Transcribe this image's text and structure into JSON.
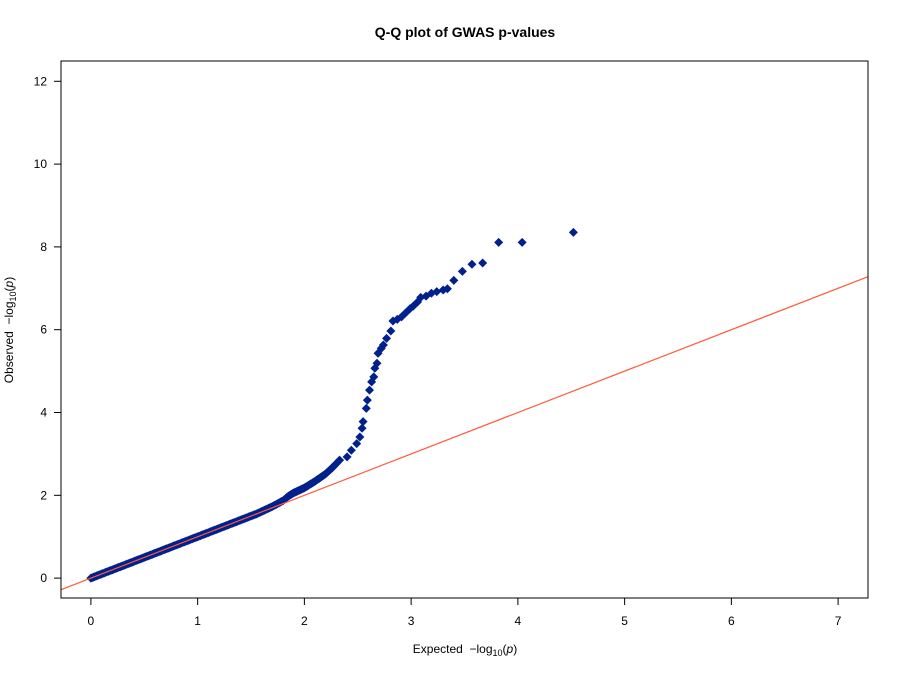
{
  "chart_data": {
    "type": "scatter",
    "title": "Q-Q plot of GWAS p-values",
    "xlabel": "Expected  −log10(p)",
    "ylabel": "Observed  −log10(p)",
    "xlim": [
      -0.28,
      7.28
    ],
    "ylim": [
      -0.48,
      12.49
    ],
    "xticks": [
      0,
      1,
      2,
      3,
      4,
      5,
      6,
      7
    ],
    "yticks": [
      0,
      2,
      4,
      6,
      8,
      10,
      12
    ],
    "grid": false,
    "marker": "diamond",
    "point_color": "#00208C",
    "reference_line": {
      "slope": 1,
      "intercept": 0,
      "color": "#FF5A3C"
    },
    "points": [
      [
        0,
        0
      ],
      [
        0.05,
        0.05
      ],
      [
        0.1,
        0.1
      ],
      [
        0.15,
        0.15
      ],
      [
        0.2,
        0.2
      ],
      [
        0.25,
        0.25
      ],
      [
        0.3,
        0.3
      ],
      [
        0.35,
        0.35
      ],
      [
        0.4,
        0.4
      ],
      [
        0.45,
        0.45
      ],
      [
        0.5,
        0.5
      ],
      [
        0.55,
        0.55
      ],
      [
        0.6,
        0.6
      ],
      [
        0.65,
        0.65
      ],
      [
        0.7,
        0.7
      ],
      [
        0.75,
        0.75
      ],
      [
        0.8,
        0.8
      ],
      [
        0.85,
        0.85
      ],
      [
        0.9,
        0.9
      ],
      [
        0.95,
        0.95
      ],
      [
        1.0,
        1.0
      ],
      [
        1.05,
        1.05
      ],
      [
        1.1,
        1.1
      ],
      [
        1.15,
        1.15
      ],
      [
        1.2,
        1.2
      ],
      [
        1.25,
        1.25
      ],
      [
        1.3,
        1.3
      ],
      [
        1.35,
        1.35
      ],
      [
        1.4,
        1.4
      ],
      [
        1.45,
        1.45
      ],
      [
        1.5,
        1.5
      ],
      [
        1.55,
        1.55
      ],
      [
        1.6,
        1.61
      ],
      [
        1.65,
        1.67
      ],
      [
        1.7,
        1.73
      ],
      [
        1.75,
        1.8
      ],
      [
        1.8,
        1.87
      ],
      [
        1.85,
        1.98
      ],
      [
        1.9,
        2.06
      ],
      [
        1.95,
        2.12
      ],
      [
        2.0,
        2.18
      ],
      [
        2.05,
        2.26
      ],
      [
        2.1,
        2.34
      ],
      [
        2.15,
        2.43
      ],
      [
        2.2,
        2.52
      ],
      [
        2.25,
        2.64
      ],
      [
        2.27,
        2.69
      ],
      [
        2.33,
        2.85
      ],
      [
        2.4,
        2.93
      ],
      [
        2.44,
        3.09
      ],
      [
        2.49,
        3.25
      ],
      [
        2.52,
        3.41
      ],
      [
        2.54,
        3.62
      ],
      [
        2.55,
        3.78
      ],
      [
        2.58,
        4.1
      ],
      [
        2.59,
        4.3
      ],
      [
        2.61,
        4.54
      ],
      [
        2.63,
        4.74
      ],
      [
        2.65,
        4.86
      ],
      [
        2.66,
        5.07
      ],
      [
        2.68,
        5.19
      ],
      [
        2.69,
        5.43
      ],
      [
        2.72,
        5.55
      ],
      [
        2.74,
        5.63
      ],
      [
        2.77,
        5.79
      ],
      [
        2.81,
        5.97
      ],
      [
        2.83,
        6.21
      ],
      [
        2.87,
        6.25
      ],
      [
        2.91,
        6.31
      ],
      [
        2.95,
        6.41
      ],
      [
        2.99,
        6.51
      ],
      [
        3.02,
        6.57
      ],
      [
        3.06,
        6.67
      ],
      [
        3.09,
        6.78
      ],
      [
        3.14,
        6.81
      ],
      [
        3.19,
        6.88
      ],
      [
        3.24,
        6.92
      ],
      [
        3.3,
        6.96
      ],
      [
        3.34,
        6.99
      ],
      [
        3.4,
        7.19
      ],
      [
        3.48,
        7.41
      ],
      [
        3.57,
        7.58
      ],
      [
        3.67,
        7.61
      ],
      [
        3.82,
        8.11
      ],
      [
        4.04,
        8.11
      ],
      [
        4.52,
        8.35
      ]
    ]
  }
}
